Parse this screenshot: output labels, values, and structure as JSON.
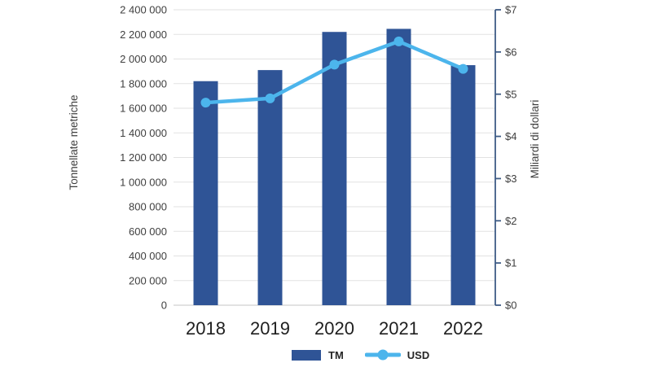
{
  "chart_data": {
    "type": "combo-bar-line",
    "categories": [
      "2018",
      "2019",
      "2020",
      "2021",
      "2022"
    ],
    "series": [
      {
        "name": "TM",
        "type": "bar",
        "axis": "left",
        "color": "#2F5496",
        "values": [
          1820000,
          1910000,
          2220000,
          2245000,
          1950000
        ]
      },
      {
        "name": "USD",
        "type": "line",
        "axis": "right",
        "color": "#4CB5EC",
        "values": [
          4.8,
          4.9,
          5.7,
          6.25,
          5.6
        ]
      }
    ],
    "left_axis": {
      "title": "Tonnellate metriche",
      "min": 0,
      "max": 2400000,
      "step": 200000,
      "tick_labels": [
        "0",
        "200 000",
        "400 000",
        "600 000",
        "800 000",
        "1 000 000",
        "1 200 000",
        "1 400 000",
        "1 600 000",
        "1 800 000",
        "2 000 000",
        "2 200 000",
        "2 400 000"
      ],
      "grid_color": "#e2e2e2",
      "baseline_color": "#c6c6c6",
      "label_color": "#3f3f3f"
    },
    "right_axis": {
      "title": "Miliardi di dollari",
      "min": 0,
      "max": 7,
      "step": 1,
      "tick_labels": [
        "$0",
        "$1",
        "$2",
        "$3",
        "$4",
        "$5",
        "$6",
        "$7"
      ],
      "axis_color": "#3e5c86",
      "label_color": "#3f3f3f"
    },
    "x_axis": {
      "label_color": "#1f1f1f"
    },
    "legend": {
      "position": "bottom",
      "items": [
        {
          "label": "TM",
          "marker": "square"
        },
        {
          "label": "USD",
          "marker": "line-dot"
        }
      ]
    },
    "grid": true
  }
}
